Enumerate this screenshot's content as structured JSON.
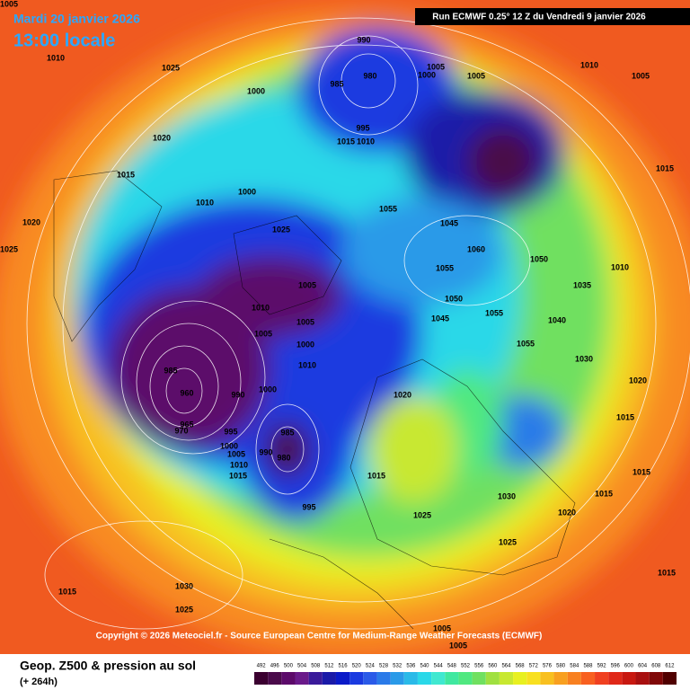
{
  "header": {
    "date": "Mardi 20 janvier 2026",
    "time": "13:00 locale",
    "run": "Run ECMWF 0.25° 12 Z du Vendredi 9 janvier 2026"
  },
  "copyright": "Copyright © 2026 Meteociel.fr - Source European Centre for Medium-Range Weather Forecasts (ECMWF)",
  "footer": {
    "title": "Geop. Z500 & pression au sol",
    "lead": "(+ 264h)"
  },
  "pressure_labels": [
    1005,
    1010,
    1025,
    1000,
    990,
    985,
    980,
    1005,
    1000,
    1005,
    1010,
    1005,
    995,
    1015,
    1010,
    1020,
    1015,
    1000,
    1010,
    1025,
    1020,
    1025,
    1015,
    1055,
    1045,
    1060,
    1050,
    1055,
    1005,
    1050,
    1055,
    1010,
    1005,
    1005,
    1045,
    1000,
    1010,
    985,
    960,
    965,
    970,
    990,
    1000,
    995,
    1000,
    1005,
    1010,
    1015,
    985,
    990,
    980,
    995,
    1020,
    1015,
    1025,
    1030,
    1020,
    1025,
    1015,
    1015,
    1030,
    1025,
    1015,
    1005,
    1005,
    1030,
    1015,
    1020,
    1015,
    1010,
    1035,
    1040,
    1055
  ],
  "scale": {
    "values": [
      492,
      496,
      500,
      504,
      508,
      512,
      516,
      520,
      524,
      528,
      532,
      536,
      540,
      544,
      548,
      552,
      556,
      560,
      564,
      568,
      572,
      576,
      580,
      584,
      588,
      592,
      596,
      600,
      604,
      608,
      612
    ],
    "colors": [
      "#3b0030",
      "#4a0a4a",
      "#5c0a6a",
      "#6a1a8a",
      "#3a1a9a",
      "#1a1aa8",
      "#0a1ac8",
      "#1a3ae0",
      "#2a5ae8",
      "#2a7ae8",
      "#2a9ae8",
      "#2abae8",
      "#2ad8e8",
      "#40e8d0",
      "#40e8a0",
      "#50e880",
      "#70e060",
      "#a0e040",
      "#c8e830",
      "#e8f020",
      "#f8e020",
      "#f8c020",
      "#f8a020",
      "#f88020",
      "#f86020",
      "#f04020",
      "#e02818",
      "#c81810",
      "#a81010",
      "#800808",
      "#500000"
    ]
  }
}
